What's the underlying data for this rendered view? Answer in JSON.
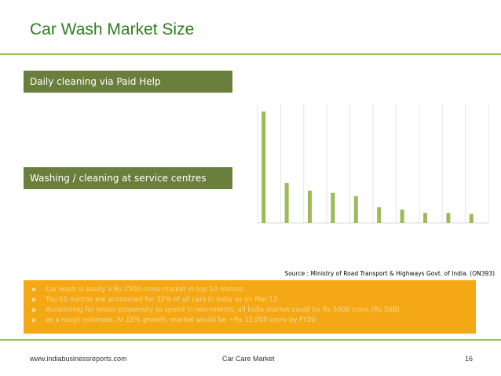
{
  "slide": {
    "title": "Car Wash Market Size",
    "band_top": "Daily cleaning via Paid Help",
    "band_bottom": "Washing / cleaning at service centres",
    "source": "Source : Ministry of Road Transport & Highways Govt. of India. (ON393)"
  },
  "bullets": [
    "Car wash is easily a Rs 2500 crore market in top 10 metros",
    "Top 10 metros are accounted for 32% of all cars in India as on Mar'12",
    "Accounting for lesser propensity to spend in non-metros, all India market could be Rs 5000 crore (Rs 50B)",
    "as a rough estimate. At 15% growth, market would be ~Rs 12,000 crore by FY20"
  ],
  "chart_data": {
    "type": "bar",
    "color": "#9bbb59",
    "values": [
      100,
      36,
      29,
      27,
      24,
      14,
      12,
      9,
      9,
      8
    ],
    "ylim": [
      0,
      110
    ],
    "grid": "vertical"
  },
  "footer": {
    "website": "www.indiabusinessreports.com",
    "section": "Car Care Market",
    "page_number": "16"
  }
}
